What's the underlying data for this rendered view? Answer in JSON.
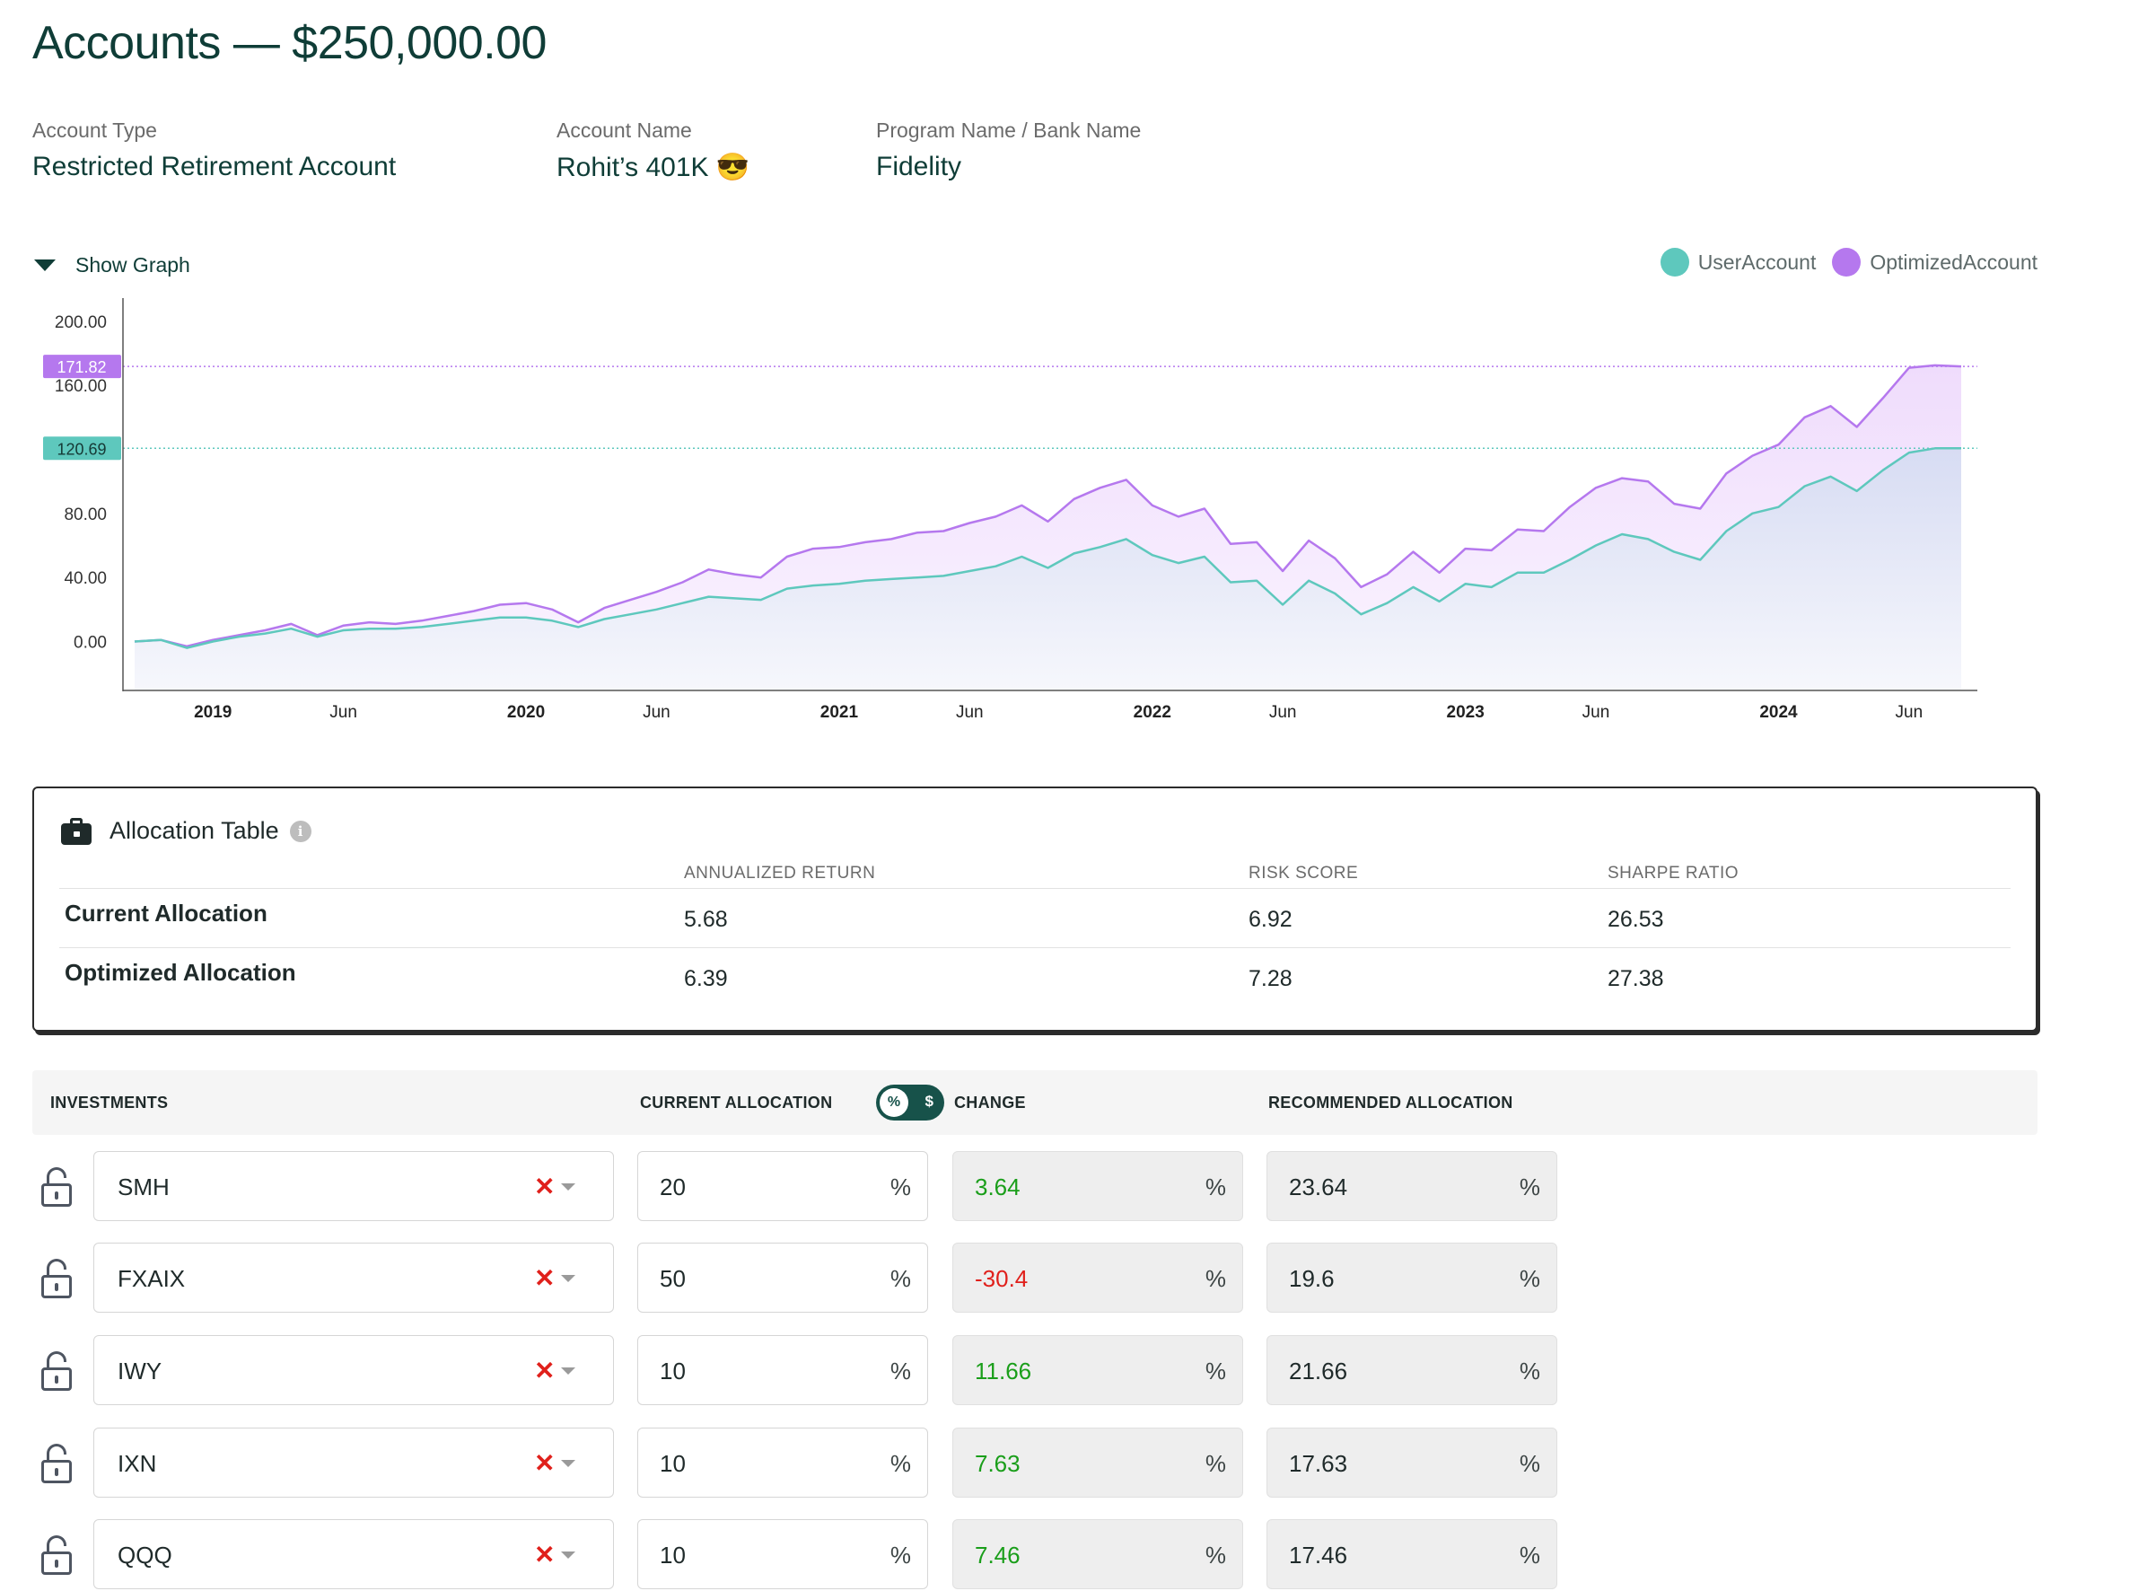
{
  "header": {
    "title_prefix": "Accounts — ",
    "total": "$250,000.00"
  },
  "account": {
    "type_label": "Account Type",
    "type_value": "Restricted Retirement Account",
    "name_label": "Account Name",
    "name_value": "Rohit’s 401K 😎",
    "program_label": "Program Name / Bank Name",
    "program_value": "Fidelity"
  },
  "graph_toggle": {
    "label": "Show Graph"
  },
  "legend": [
    {
      "name": "UserAccount",
      "color": "#5ec8bd"
    },
    {
      "name": "OptimizedAccount",
      "color": "#b578ee"
    }
  ],
  "chart_data": {
    "type": "area",
    "y_ticks": [
      "200.00",
      "160.00",
      "80.00",
      "40.00",
      "0.00"
    ],
    "y_range": [
      -30,
      210
    ],
    "x_ticks": [
      {
        "label": "2019",
        "bold": true,
        "i": 3
      },
      {
        "label": "Jun",
        "bold": false,
        "i": 8
      },
      {
        "label": "2020",
        "bold": true,
        "i": 15
      },
      {
        "label": "Jun",
        "bold": false,
        "i": 20
      },
      {
        "label": "2021",
        "bold": true,
        "i": 27
      },
      {
        "label": "Jun",
        "bold": false,
        "i": 32
      },
      {
        "label": "2022",
        "bold": true,
        "i": 39
      },
      {
        "label": "Jun",
        "bold": false,
        "i": 44
      },
      {
        "label": "2023",
        "bold": true,
        "i": 51
      },
      {
        "label": "Jun",
        "bold": false,
        "i": 56
      },
      {
        "label": "2024",
        "bold": true,
        "i": 63
      },
      {
        "label": "Jun",
        "bold": false,
        "i": 68
      }
    ],
    "last_values": [
      {
        "value": "171.82",
        "y": 171.82,
        "series": "OptimizedAccount",
        "color": "#b578ee"
      },
      {
        "value": "120.69",
        "y": 120.69,
        "series": "UserAccount",
        "color": "#5ec8bd"
      }
    ],
    "series": [
      {
        "name": "UserAccount",
        "color": "#5ec8bd",
        "fill": "#dfe3f5",
        "values": [
          0,
          1,
          -4,
          0,
          3,
          5,
          8,
          3,
          7,
          8,
          8,
          9,
          11,
          13,
          15,
          15,
          13,
          9,
          14,
          17,
          20,
          24,
          28,
          27,
          26,
          33,
          35,
          36,
          38,
          39,
          40,
          41,
          44,
          47,
          53,
          46,
          55,
          59,
          64,
          54,
          49,
          53,
          37,
          38,
          23,
          38,
          30,
          17,
          24,
          34,
          25,
          36,
          34,
          43,
          43,
          51,
          60,
          67,
          64,
          56,
          51,
          69,
          80,
          84,
          97,
          103,
          94,
          107,
          118,
          120.7,
          120.69
        ]
      },
      {
        "name": "OptimizedAccount",
        "color": "#b578ee",
        "fill": "#f1e2fc",
        "values": [
          0,
          1,
          -3,
          1,
          4,
          7,
          11,
          4,
          10,
          12,
          11,
          13,
          16,
          19,
          23,
          24,
          20,
          12,
          21,
          26,
          31,
          37,
          45,
          42,
          40,
          53,
          58,
          59,
          62,
          64,
          68,
          69,
          74,
          78,
          85,
          75,
          89,
          96,
          101,
          85,
          78,
          83,
          61,
          62,
          44,
          63,
          52,
          34,
          42,
          56,
          43,
          58,
          57,
          70,
          69,
          84,
          96,
          102,
          100,
          86,
          83,
          105,
          116,
          123,
          140,
          147,
          134,
          152,
          171,
          172.5,
          171.82
        ]
      }
    ]
  },
  "allocation_table": {
    "title": "Allocation Table",
    "info_icon": "info-icon",
    "columns": [
      "ANNUALIZED RETURN",
      "RISK SCORE",
      "SHARPE RATIO"
    ],
    "rows": [
      {
        "label": "Current Allocation",
        "values": [
          "5.68",
          "6.92",
          "26.53"
        ]
      },
      {
        "label": "Optimized Allocation",
        "values": [
          "6.39",
          "7.28",
          "27.38"
        ]
      }
    ]
  },
  "investments": {
    "headers": {
      "investments": "INVESTMENTS",
      "current": "CURRENT ALLOCATION",
      "change": "CHANGE",
      "recommended": "RECOMMENDED ALLOCATION"
    },
    "toggle": {
      "percent_icon": "%",
      "dollar_icon": "$"
    },
    "pct_symbol": "%",
    "clear_icon": "✕",
    "positive_color": "#1a9e1a",
    "negative_color": "#e0201b",
    "rows": [
      {
        "ticker": "SMH",
        "current": "20",
        "change": "3.64",
        "change_positive": true,
        "recommended": "23.64"
      },
      {
        "ticker": "FXAIX",
        "current": "50",
        "change": "-30.4",
        "change_positive": false,
        "recommended": "19.6"
      },
      {
        "ticker": "IWY",
        "current": "10",
        "change": "11.66",
        "change_positive": true,
        "recommended": "21.66"
      },
      {
        "ticker": "IXN",
        "current": "10",
        "change": "7.63",
        "change_positive": true,
        "recommended": "17.63"
      },
      {
        "ticker": "QQQ",
        "current": "10",
        "change": "7.46",
        "change_positive": true,
        "recommended": "17.46"
      }
    ]
  }
}
